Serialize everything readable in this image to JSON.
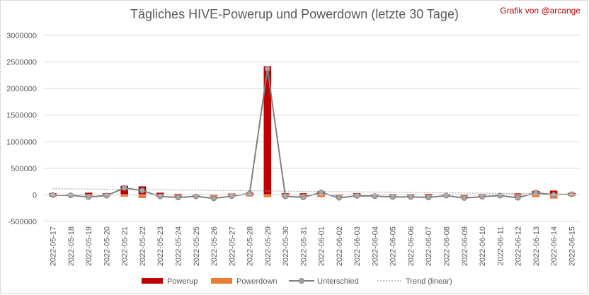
{
  "chart_data": {
    "type": "bar",
    "title": "Tägliches HIVE-Powerup und Powerdown (letzte 30 Tage)",
    "credit": "Grafik von @arcange",
    "categories": [
      "2022-05-17",
      "2022-05-18",
      "2022-05-19",
      "2022-05-20",
      "2022-05-21",
      "2022-05-22",
      "2022-05-23",
      "2022-05-24",
      "2022-05-25",
      "2022-05-26",
      "2022-05-27",
      "2022-05-28",
      "2022-05-29",
      "2022-05-30",
      "2022-05-31",
      "2022-06-01",
      "2022-06-02",
      "2022-06-03",
      "2022-06-04",
      "2022-06-05",
      "2022-06-06",
      "2022-06-07",
      "2022-06-08",
      "2022-06-09",
      "2022-06-10",
      "2022-06-11",
      "2022-06-12",
      "2022-06-13",
      "2022-06-14",
      "2022-06-15"
    ],
    "series": [
      {
        "name": "Powerup",
        "type": "bar",
        "color": "#c00000",
        "values": [
          30000,
          15000,
          40000,
          30000,
          170000,
          160000,
          40000,
          20000,
          10000,
          10000,
          25000,
          40000,
          2420000,
          30000,
          30000,
          65000,
          10000,
          30000,
          15000,
          15000,
          15000,
          20000,
          15000,
          10000,
          15000,
          10000,
          30000,
          75000,
          80000,
          35000
        ]
      },
      {
        "name": "Powerdown",
        "type": "bar",
        "color": "#ed7d31",
        "values": [
          -35000,
          -25000,
          -45000,
          -30000,
          -35000,
          -60000,
          -45000,
          -40000,
          -30000,
          -40000,
          -30000,
          -30000,
          -45000,
          -40000,
          -45000,
          -45000,
          -30000,
          -25000,
          -25000,
          -40000,
          -30000,
          -35000,
          -20000,
          -50000,
          -30000,
          -25000,
          -40000,
          -45000,
          -70000,
          -25000
        ]
      },
      {
        "name": "Unterschied",
        "type": "line",
        "color": "#808080",
        "values": [
          -5000,
          -10000,
          -40000,
          -15000,
          130000,
          80000,
          -30000,
          -50000,
          -30000,
          -65000,
          -25000,
          25000,
          2370000,
          -30000,
          -45000,
          45000,
          -55000,
          -20000,
          -25000,
          -40000,
          -40000,
          -50000,
          -15000,
          -60000,
          -35000,
          -15000,
          -55000,
          40000,
          0,
          10000
        ]
      },
      {
        "name": "Trend (linear)",
        "type": "trendline",
        "color": "#a6a6a6"
      }
    ],
    "ylim": [
      -500000,
      3000000
    ],
    "yticks": [
      -500000,
      0,
      500000,
      1000000,
      1500000,
      2000000,
      2500000,
      3000000
    ],
    "ytick_labels": [
      "-500000",
      "0",
      "500000",
      "1000000",
      "1500000",
      "2000000",
      "2500000",
      "3000000"
    ],
    "grid": true,
    "legend": "bottom"
  }
}
